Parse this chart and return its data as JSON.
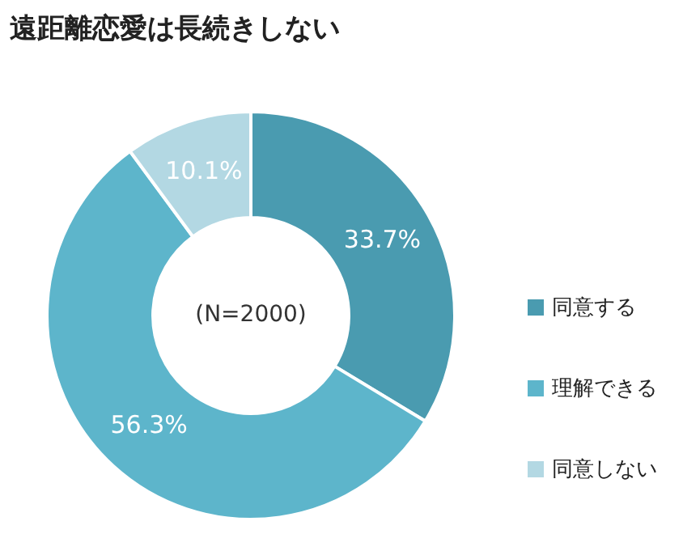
{
  "chart_data": {
    "type": "donut",
    "title": "遠距離恋愛は長続きしない",
    "categories": [
      "同意する",
      "理解できる",
      "同意しない"
    ],
    "values": [
      33.7,
      56.3,
      10.1
    ],
    "colors": [
      "#4a9bb0",
      "#5db5cb",
      "#b3d8e3"
    ],
    "value_labels": [
      "33.7%",
      "56.3%",
      "10.1%"
    ],
    "annotations": [
      "(N=2000)"
    ],
    "legend": "right"
  }
}
